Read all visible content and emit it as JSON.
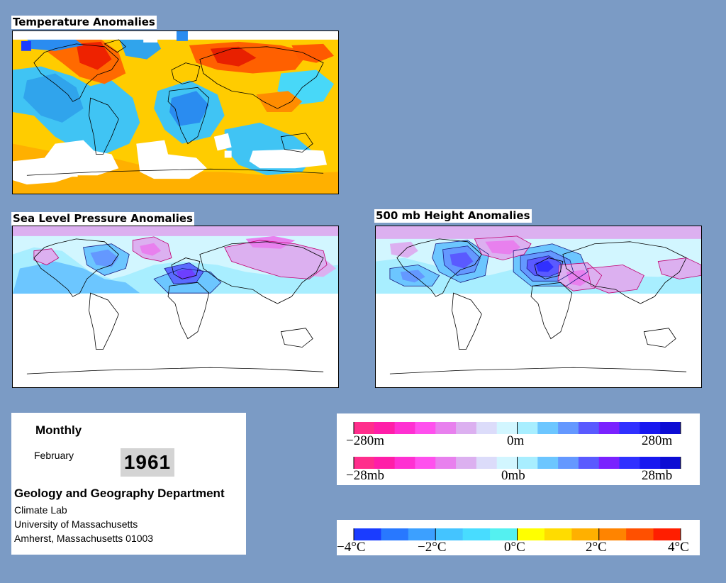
{
  "panels": {
    "temperature": {
      "title": "Temperature Anomalies"
    },
    "slp": {
      "title": "Sea Level Pressure Anomalies"
    },
    "height": {
      "title": "500 mb Height Anomalies"
    }
  },
  "info": {
    "frequency": "Monthly",
    "month": "February",
    "year": "1961",
    "department": "Geology and Geography Department",
    "address_lines": [
      "Climate Lab",
      "University of Massachusetts",
      "Amherst, Massachusetts 01003"
    ]
  },
  "legends": {
    "height_scale": {
      "min": "−280m",
      "mid": "0m",
      "max": "280m"
    },
    "pressure_scale": {
      "min": "−28mb",
      "mid": "0mb",
      "max": "28mb"
    },
    "pressure_colors": [
      "#ff2e8c",
      "#ff1ea8",
      "#ff30d2",
      "#ff50ee",
      "#e880ee",
      "#dcb0f0",
      "#dcdcfa",
      "#d2f6ff",
      "#a8eeff",
      "#6cc6ff",
      "#6498ff",
      "#5a5aff",
      "#7a22ff",
      "#3030ff",
      "#1818f0",
      "#0c0cd4"
    ],
    "temperature_scale": {
      "labels": [
        "−4°C",
        "−2°C",
        "0°C",
        "2°C",
        "4°C"
      ]
    },
    "temperature_colors": [
      "#1a3cff",
      "#2878ff",
      "#3ca0ff",
      "#44c4ff",
      "#48dcff",
      "#54f0f0",
      "#ffff00",
      "#ffdc00",
      "#ffb000",
      "#ff8400",
      "#ff5000",
      "#ff1e00"
    ]
  },
  "colors": {
    "background": "#7b9bc5",
    "warm": "#ff8c00",
    "cold": "#34b4f0",
    "positive_pressure": "#4a5ef0",
    "negative_pressure": "#e070e0"
  }
}
